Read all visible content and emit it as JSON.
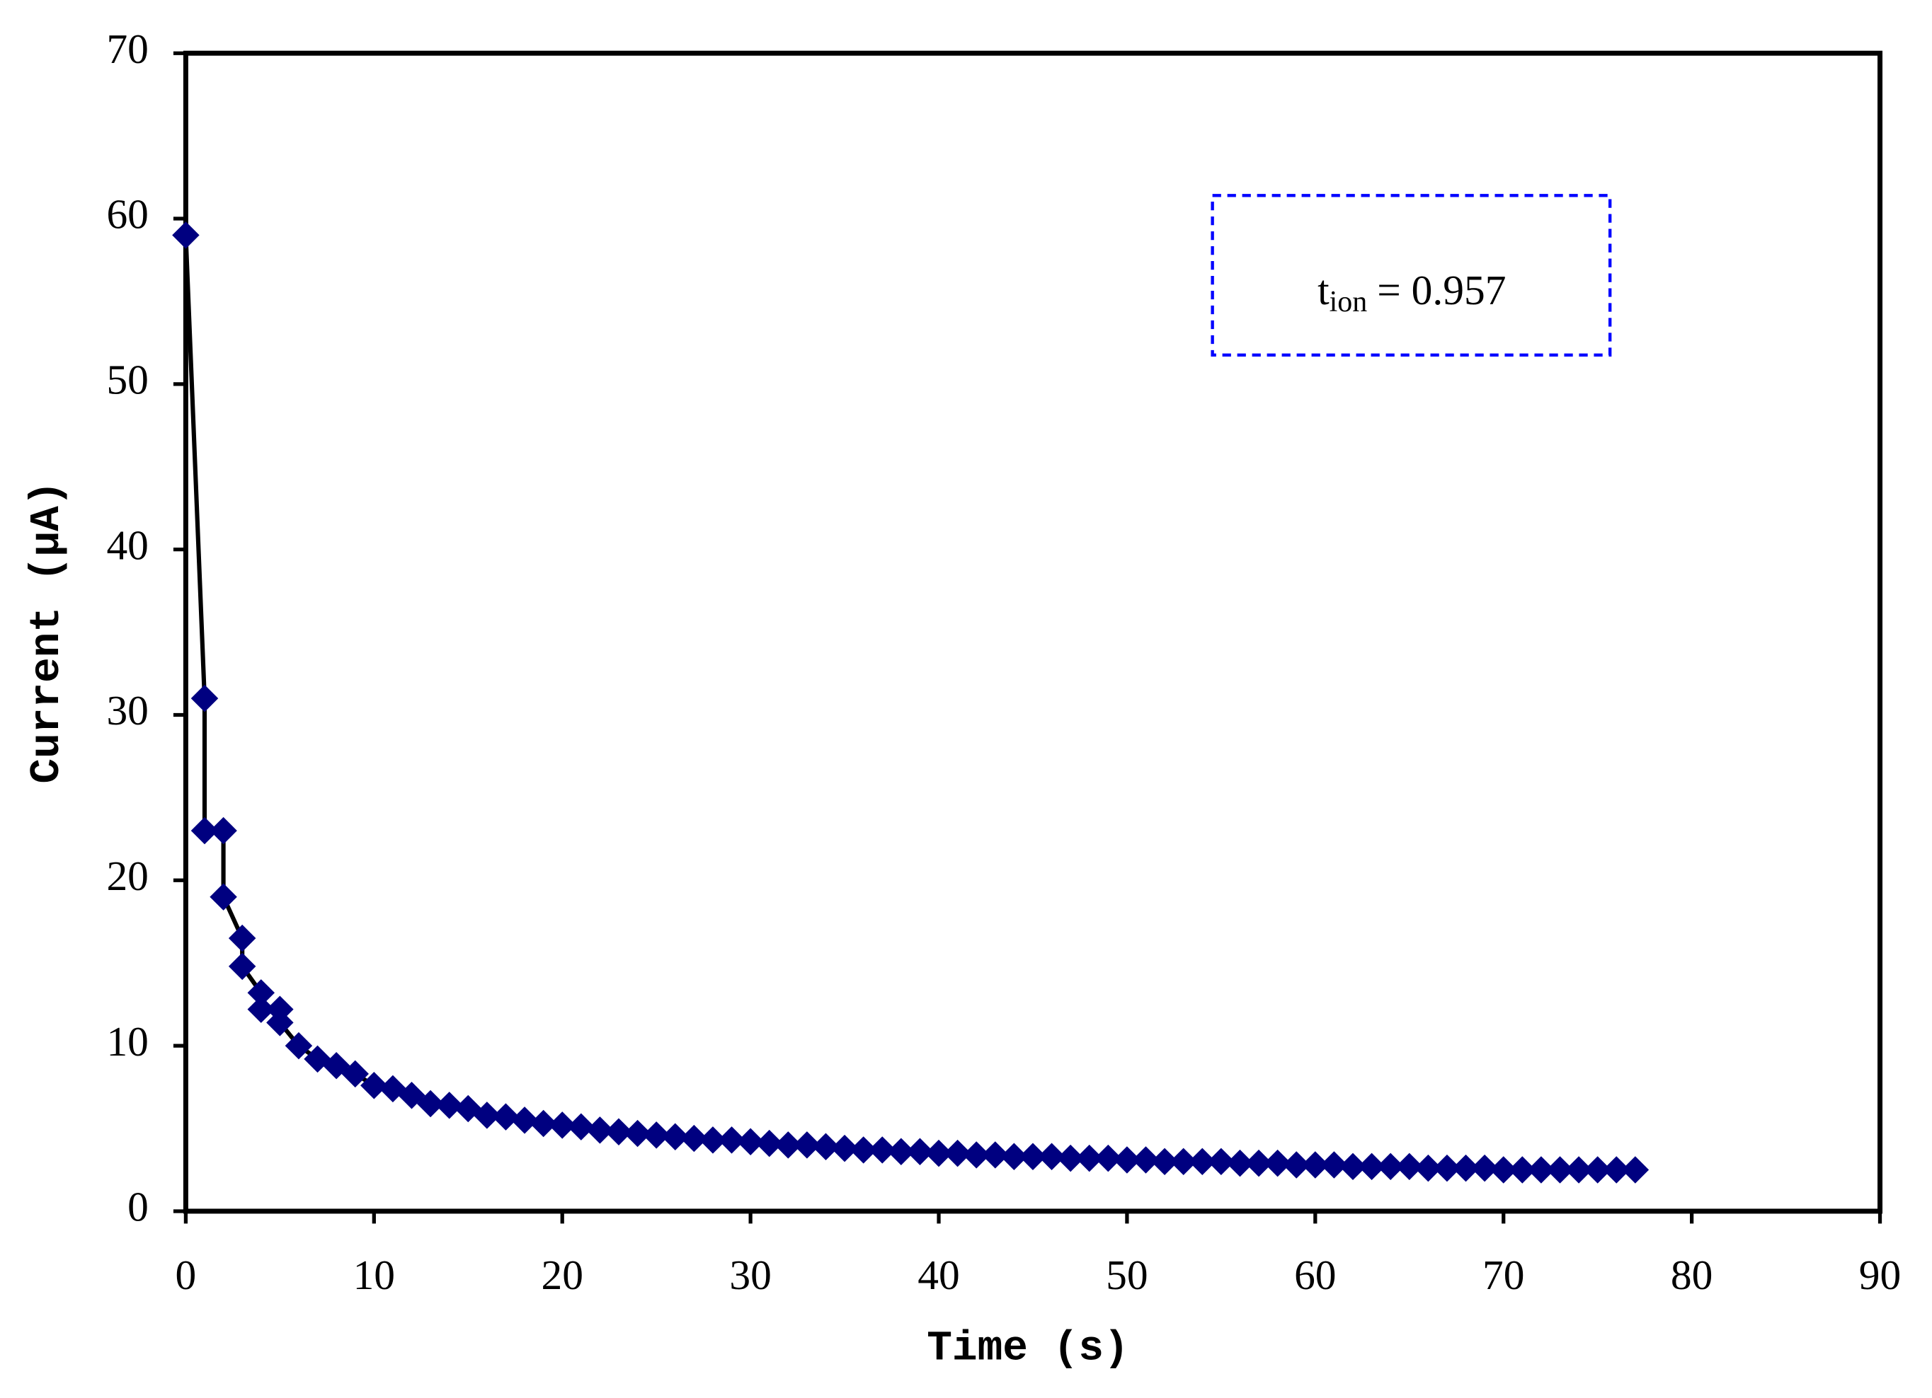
{
  "chart_data": {
    "type": "scatter",
    "xlabel": "Time (s)",
    "ylabel": "Current (μA)",
    "annotation": {
      "symbol": "t",
      "subscript": "ion",
      "text": "= 0.957"
    },
    "xlim": [
      0,
      90
    ],
    "xticks": [
      0,
      10,
      20,
      30,
      40,
      50,
      60,
      70,
      80,
      90
    ],
    "ylim": [
      0,
      70
    ],
    "yticks": [
      0,
      10,
      20,
      30,
      40,
      50,
      60,
      70
    ],
    "grid": false,
    "series": [
      {
        "color": "#000080",
        "line_color": "#000000",
        "x": [
          0,
          1,
          1,
          2,
          2,
          3,
          3,
          4,
          4,
          5,
          5,
          6,
          7,
          8,
          9,
          10,
          11,
          12,
          13,
          14,
          15,
          16,
          17,
          18,
          19,
          20,
          21,
          22,
          23,
          24,
          25,
          26,
          27,
          28,
          29,
          30,
          31,
          32,
          33,
          34,
          35,
          36,
          37,
          38,
          39,
          40,
          41,
          42,
          43,
          44,
          45,
          46,
          47,
          48,
          49,
          50,
          51,
          52,
          53,
          54,
          55,
          56,
          57,
          58,
          59,
          60,
          61,
          62,
          63,
          64,
          65,
          66,
          67,
          68,
          69,
          70,
          71,
          72,
          73,
          74,
          75,
          76,
          77
        ],
        "values": [
          59,
          31,
          23,
          23,
          19,
          16.5,
          14.8,
          13.2,
          12.2,
          12.2,
          11.4,
          10.0,
          9.2,
          8.8,
          8.3,
          7.6,
          7.4,
          7.0,
          6.5,
          6.4,
          6.2,
          5.8,
          5.7,
          5.5,
          5.3,
          5.2,
          5.1,
          4.9,
          4.8,
          4.7,
          4.6,
          4.5,
          4.4,
          4.3,
          4.3,
          4.2,
          4.1,
          4.0,
          4.0,
          3.9,
          3.8,
          3.7,
          3.7,
          3.6,
          3.6,
          3.5,
          3.5,
          3.4,
          3.4,
          3.3,
          3.3,
          3.3,
          3.2,
          3.2,
          3.2,
          3.1,
          3.1,
          3.0,
          3.0,
          3.0,
          3.0,
          2.9,
          2.9,
          2.9,
          2.8,
          2.8,
          2.8,
          2.7,
          2.7,
          2.7,
          2.7,
          2.6,
          2.6,
          2.6,
          2.6,
          2.5,
          2.5,
          2.5,
          2.5,
          2.5,
          2.5,
          2.5,
          2.5
        ]
      }
    ]
  }
}
